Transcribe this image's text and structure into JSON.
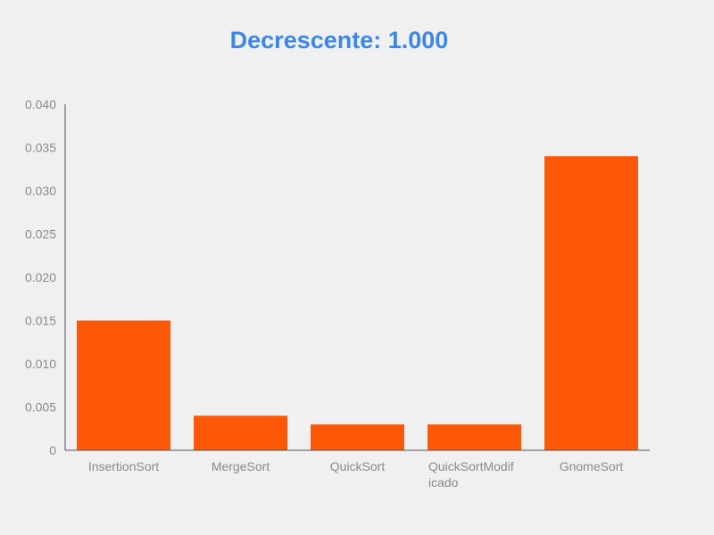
{
  "colors": {
    "background": "#f0f0f0",
    "title": "#3b87e9",
    "bar": "#fd5807",
    "axis": "#555555",
    "tick_text": "#8a8a8a"
  },
  "chart_data": {
    "type": "bar",
    "title": "Decrescente: 1.000",
    "xlabel": "",
    "ylabel": "",
    "categories": [
      "InsertionSort",
      "MergeSort",
      "QuickSort",
      "QuickSortModificado",
      "GnomeSort"
    ],
    "category_labels": [
      [
        "InsertionSort"
      ],
      [
        "MergeSort"
      ],
      [
        "QuickSort"
      ],
      [
        "QuickSortModif",
        "icado"
      ],
      [
        "GnomeSort"
      ]
    ],
    "values": [
      0.015,
      0.004,
      0.003,
      0.003,
      0.034
    ],
    "ylim": [
      0,
      0.04
    ],
    "yticks": [
      0,
      0.005,
      0.01,
      0.015,
      0.02,
      0.025,
      0.03,
      0.035,
      0.04
    ],
    "ytick_labels": [
      "0",
      "0.005",
      "0.010",
      "0.015",
      "0.020",
      "0.025",
      "0.030",
      "0.035",
      "0.040"
    ],
    "grid": false,
    "legend": "none"
  }
}
